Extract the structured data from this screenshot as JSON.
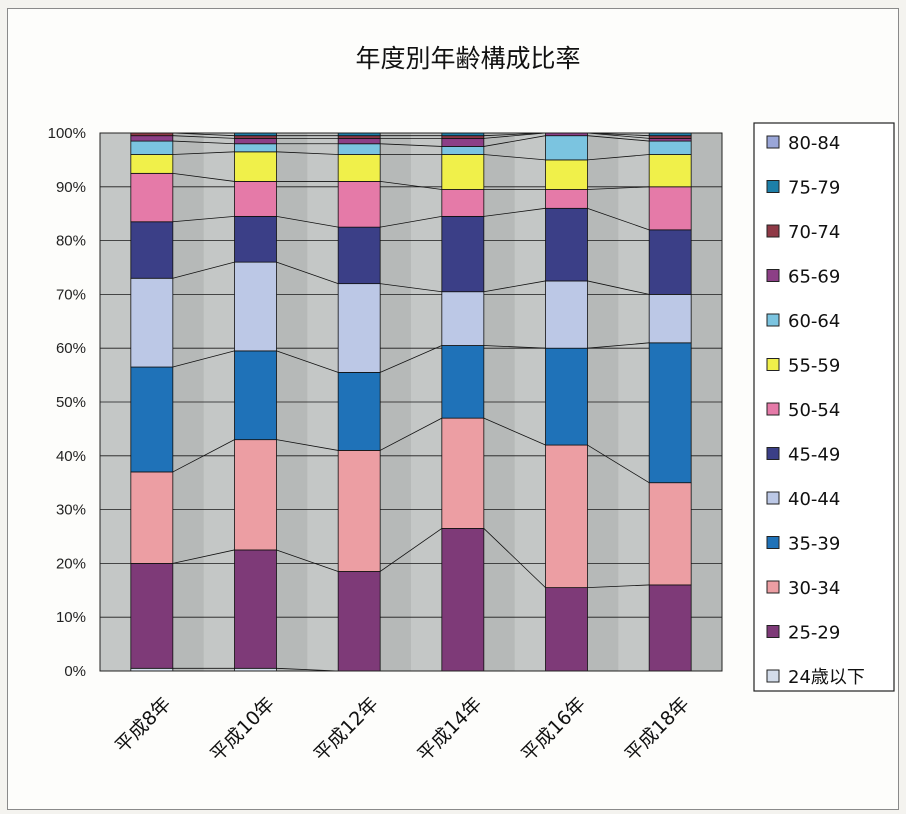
{
  "chart_data": {
    "type": "bar",
    "stacked": true,
    "title": "年度別年齢構成比率",
    "xlabel": "",
    "ylabel": "",
    "ylim": [
      0,
      100
    ],
    "y_ticks": [
      "0%",
      "10%",
      "20%",
      "30%",
      "40%",
      "50%",
      "60%",
      "70%",
      "80%",
      "90%",
      "100%"
    ],
    "categories": [
      "平成8年",
      "平成10年",
      "平成12年",
      "平成14年",
      "平成16年",
      "平成18年"
    ],
    "grid": true,
    "legend_position": "right",
    "series": [
      {
        "name": "24歳以下",
        "color": "#d3dcea",
        "values": [
          0.5,
          0.5,
          0.0,
          0.0,
          0.0,
          0.0
        ]
      },
      {
        "name": "25-29",
        "color": "#7e3a78",
        "values": [
          19.5,
          22.0,
          18.5,
          26.5,
          15.5,
          16.0
        ]
      },
      {
        "name": "30-34",
        "color": "#ec9ea3",
        "values": [
          17.0,
          20.5,
          22.5,
          20.5,
          26.5,
          19.0
        ]
      },
      {
        "name": "35-39",
        "color": "#1f72b8",
        "values": [
          19.5,
          16.5,
          14.5,
          13.5,
          18.0,
          26.0
        ]
      },
      {
        "name": "40-44",
        "color": "#bcc8e6",
        "values": [
          16.5,
          16.5,
          16.5,
          10.0,
          12.5,
          9.0
        ]
      },
      {
        "name": "45-49",
        "color": "#3b3f87",
        "values": [
          10.5,
          8.5,
          10.5,
          14.0,
          13.5,
          12.0
        ]
      },
      {
        "name": "50-54",
        "color": "#e57aa8",
        "values": [
          9.0,
          6.5,
          8.5,
          5.0,
          3.5,
          8.0
        ]
      },
      {
        "name": "55-59",
        "color": "#f0f04a",
        "values": [
          3.5,
          5.5,
          5.0,
          6.5,
          5.5,
          6.0
        ]
      },
      {
        "name": "60-64",
        "color": "#7bc4e0",
        "values": [
          2.5,
          1.5,
          2.0,
          1.5,
          4.5,
          2.5
        ]
      },
      {
        "name": "65-69",
        "color": "#8c3f86",
        "values": [
          1.0,
          1.0,
          1.0,
          1.5,
          0.5,
          0.5
        ]
      },
      {
        "name": "70-74",
        "color": "#8f3946",
        "values": [
          0.5,
          0.5,
          0.5,
          0.5,
          0.0,
          0.5
        ]
      },
      {
        "name": "75-79",
        "color": "#1d7fa8",
        "values": [
          0.0,
          0.5,
          0.5,
          0.5,
          0.0,
          0.5
        ]
      },
      {
        "name": "80-84",
        "color": "#9aa6d8",
        "values": [
          0.0,
          0.0,
          0.0,
          0.0,
          0.0,
          0.0
        ]
      }
    ]
  }
}
